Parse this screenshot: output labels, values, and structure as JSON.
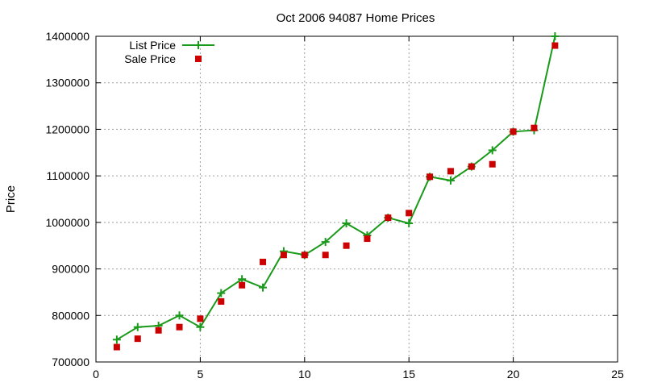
{
  "chart_data": {
    "type": "line",
    "title": "Oct 2006 94087 Home Prices",
    "xlabel": "",
    "ylabel": "Price",
    "xlim": [
      0,
      25
    ],
    "ylim": [
      700000,
      1400000
    ],
    "x_ticks": [
      0,
      5,
      10,
      15,
      20,
      25
    ],
    "y_ticks": [
      700000,
      800000,
      900000,
      1000000,
      1100000,
      1200000,
      1300000,
      1400000
    ],
    "grid": true,
    "legend_position": "top-left",
    "series": [
      {
        "name": "List Price",
        "style": "line-with-plus-markers",
        "color": "#1a9a1a",
        "x": [
          1,
          2,
          3,
          4,
          5,
          6,
          7,
          8,
          9,
          10,
          11,
          12,
          13,
          14,
          15,
          16,
          17,
          18,
          19,
          20,
          21,
          22
        ],
        "y": [
          748000,
          775000,
          778000,
          800000,
          775000,
          848000,
          878000,
          860000,
          938000,
          930000,
          958000,
          998000,
          972000,
          1010000,
          998000,
          1098000,
          1090000,
          1120000,
          1155000,
          1195000,
          1198000,
          1400000
        ]
      },
      {
        "name": "Sale Price",
        "style": "square-markers",
        "color": "#cc0000",
        "x": [
          1,
          2,
          3,
          4,
          5,
          6,
          7,
          8,
          9,
          10,
          11,
          12,
          13,
          14,
          15,
          16,
          17,
          18,
          19,
          20,
          21,
          22
        ],
        "y": [
          732000,
          750000,
          768000,
          775000,
          793000,
          830000,
          865000,
          915000,
          930000,
          930000,
          930000,
          950000,
          965000,
          1010000,
          1020000,
          1098000,
          1110000,
          1120000,
          1125000,
          1195000,
          1203000,
          1380000
        ]
      }
    ]
  }
}
